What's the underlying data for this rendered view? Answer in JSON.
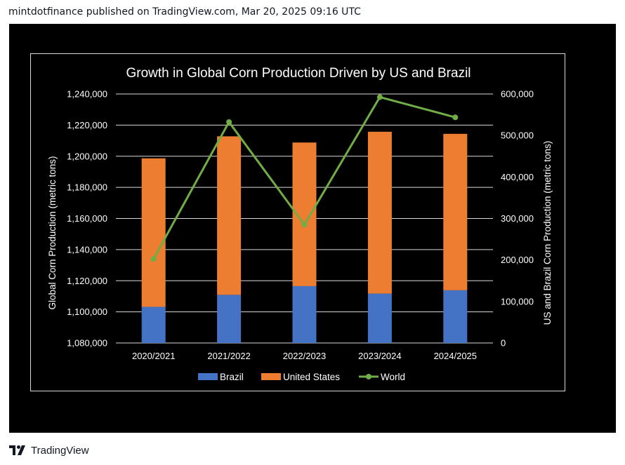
{
  "header": {
    "text": "mintdotfinance published on TradingView.com, Mar 20, 2025 09:16 UTC"
  },
  "footer": {
    "brand": "TradingView",
    "logo_icon": "tradingview-logo-icon"
  },
  "colors": {
    "brazil": "#4472c4",
    "united_states": "#ed7d31",
    "world": "#70ad47",
    "grid": "#d9d9d9",
    "text": "#ffffff"
  },
  "chart_data": {
    "type": "bar",
    "title": "Growth in Global Corn Production Driven by US and Brazil",
    "categories": [
      "2020/2021",
      "2021/2022",
      "2022/2023",
      "2023/2024",
      "2024/2025"
    ],
    "series": [
      {
        "name": "Brazil",
        "type": "bar",
        "stack": "right-axis",
        "axis": "right",
        "values": [
          87000,
          116000,
          137000,
          119000,
          127000
        ]
      },
      {
        "name": "United States",
        "type": "bar",
        "stack": "right-axis",
        "axis": "right",
        "values": [
          358000,
          382000,
          346000,
          390000,
          377000
        ]
      },
      {
        "name": "World",
        "type": "line",
        "axis": "left",
        "values": [
          1134000,
          1222000,
          1156000,
          1238000,
          1225000
        ]
      }
    ],
    "ylabel_left": "Global Corn Production (metric tons)",
    "ylabel_right": "US and Brazil Corn Production (metric tons)",
    "ylim_left": [
      1080000,
      1240000
    ],
    "ylim_right": [
      0,
      600000
    ],
    "yticks_left": [
      "1,080,000",
      "1,100,000",
      "1,120,000",
      "1,140,000",
      "1,160,000",
      "1,180,000",
      "1,200,000",
      "1,220,000",
      "1,240,000"
    ],
    "yticks_right": [
      "0",
      "100,000",
      "200,000",
      "300,000",
      "400,000",
      "500,000",
      "600,000"
    ],
    "legend": [
      "Brazil",
      "United States",
      "World"
    ],
    "legend_position": "bottom",
    "grid": true
  }
}
